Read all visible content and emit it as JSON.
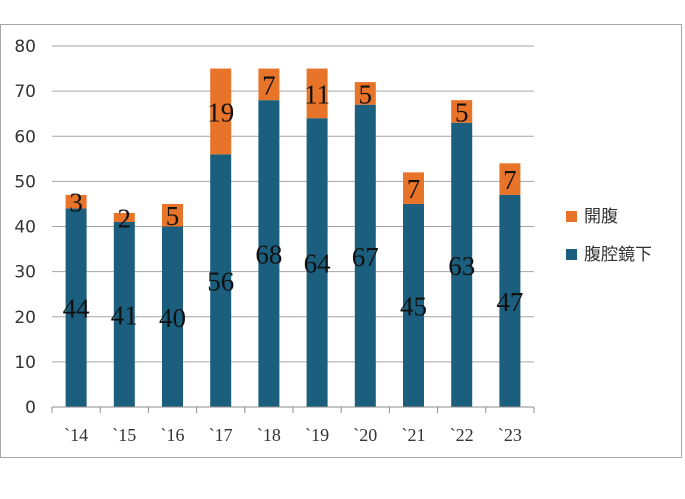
{
  "chart_data": {
    "type": "bar",
    "stacked": true,
    "categories": [
      "`14",
      "`15",
      "`16",
      "`17",
      "`18",
      "`19",
      "`20",
      "`21",
      "`22",
      "`23"
    ],
    "series": [
      {
        "name": "腹腔鏡下",
        "color": "#1b5e7e",
        "values": [
          44,
          41,
          40,
          56,
          68,
          64,
          67,
          45,
          63,
          47
        ]
      },
      {
        "name": "開腹",
        "color": "#e8742a",
        "values": [
          3,
          2,
          5,
          19,
          7,
          11,
          5,
          7,
          5,
          7
        ]
      }
    ],
    "ylim": [
      0,
      80
    ],
    "yticks": [
      0,
      10,
      20,
      30,
      40,
      50,
      60,
      70,
      80
    ],
    "grid": true,
    "legend_position": "right"
  }
}
